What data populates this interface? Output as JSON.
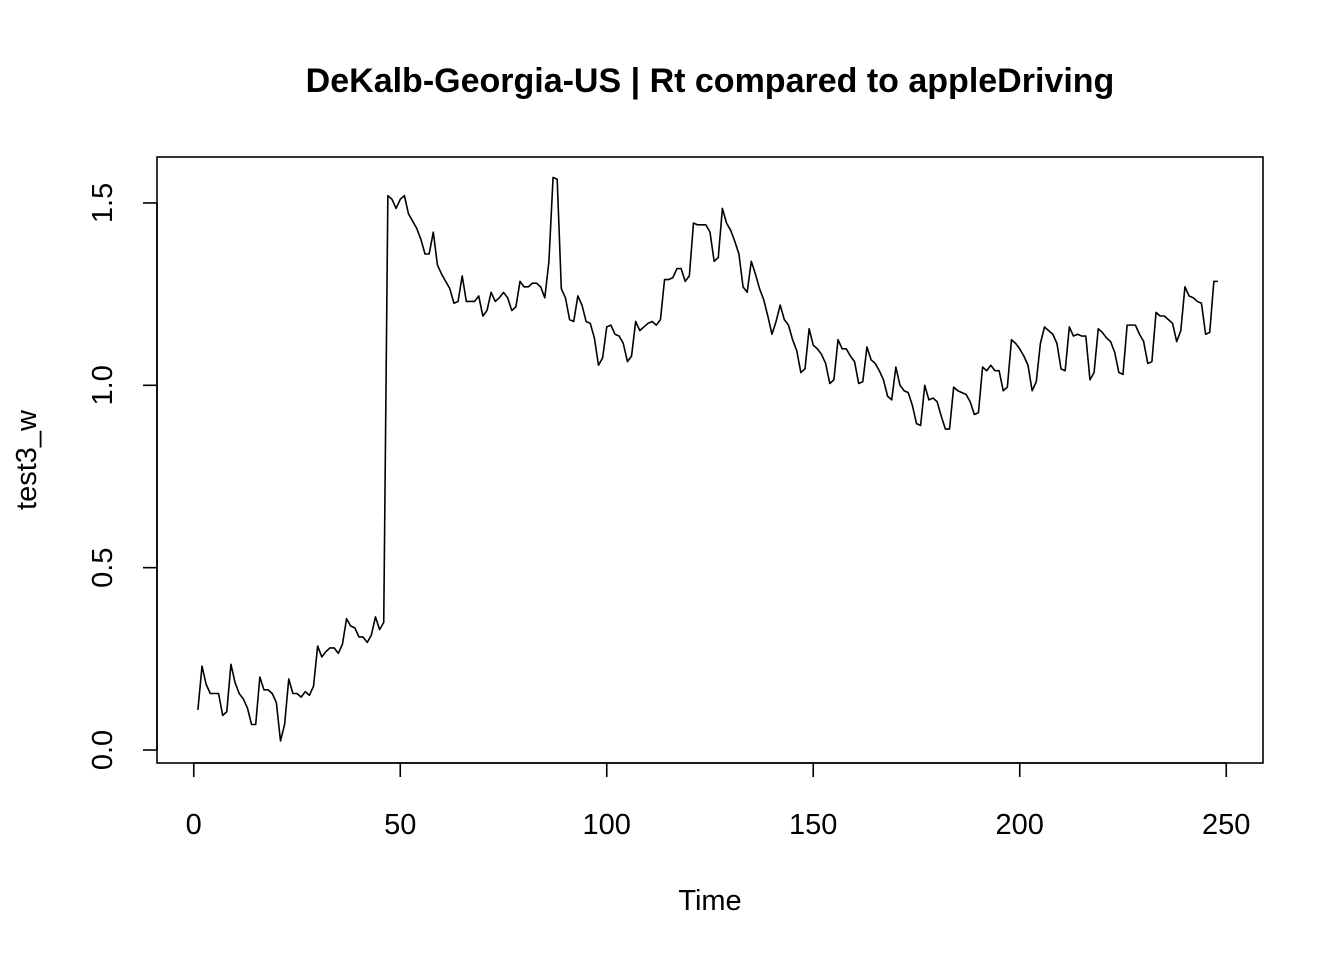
{
  "chart_data": {
    "type": "line",
    "title": "DeKalb-Georgia-US | Rt compared to appleDriving",
    "xlabel": "Time",
    "ylabel": "test3_w",
    "xlim": [
      -8.9,
      258.9
    ],
    "ylim": [
      -0.0356,
      1.626
    ],
    "x_ticks": [
      0,
      50,
      100,
      150,
      200,
      250
    ],
    "y_ticks": [
      0.0,
      0.5,
      1.0,
      1.5
    ],
    "x_tick_labels": [
      "0",
      "50",
      "100",
      "150",
      "200",
      "250"
    ],
    "y_tick_labels": [
      "0.0",
      "0.5",
      "1.0",
      "1.5"
    ],
    "grid": false,
    "series": [
      {
        "x": [
          1,
          2,
          3,
          4,
          5,
          6,
          7,
          8,
          9,
          10,
          11,
          12,
          13,
          14,
          15,
          16,
          17,
          18,
          19,
          20,
          21,
          22,
          23,
          24,
          25,
          26,
          27,
          28,
          29,
          30,
          31,
          32,
          33,
          34,
          35,
          36,
          37,
          38,
          39,
          40,
          41,
          42,
          43,
          44,
          45,
          46,
          47,
          48,
          49,
          50,
          51,
          52,
          53,
          54,
          55,
          56,
          57,
          58,
          59,
          60,
          61,
          62,
          63,
          64,
          65,
          66,
          67,
          68,
          69,
          70,
          71,
          72,
          73,
          74,
          75,
          76,
          77,
          78,
          79,
          80,
          81,
          82,
          83,
          84,
          85,
          86,
          87,
          88,
          89,
          90,
          91,
          92,
          93,
          94,
          95,
          96,
          97,
          98,
          99,
          100,
          101,
          102,
          103,
          104,
          105,
          106,
          107,
          108,
          109,
          110,
          111,
          112,
          113,
          114,
          115,
          116,
          117,
          118,
          119,
          120,
          121,
          122,
          123,
          124,
          125,
          126,
          127,
          128,
          129,
          130,
          131,
          132,
          133,
          134,
          135,
          136,
          137,
          138,
          139,
          140,
          141,
          142,
          143,
          144,
          145,
          146,
          147,
          148,
          149,
          150,
          151,
          152,
          153,
          154,
          155,
          156,
          157,
          158,
          159,
          160,
          161,
          162,
          163,
          164,
          165,
          166,
          167,
          168,
          169,
          170,
          171,
          172,
          173,
          174,
          175,
          176,
          177,
          178,
          179,
          180,
          181,
          182,
          183,
          184,
          185,
          186,
          187,
          188,
          189,
          190,
          191,
          192,
          193,
          194,
          195,
          196,
          197,
          198,
          199,
          200,
          201,
          202,
          203,
          204,
          205,
          206,
          207,
          208,
          209,
          210,
          211,
          212,
          213,
          214,
          215,
          216,
          217,
          218,
          219,
          220,
          221,
          222,
          223,
          224,
          225,
          226,
          227,
          228,
          229,
          230,
          231,
          232,
          233,
          234,
          235,
          236,
          237,
          238,
          239,
          240,
          241,
          242,
          243,
          244,
          245,
          246,
          247,
          248
        ],
        "values": [
          0.11,
          0.23,
          0.18,
          0.155,
          0.155,
          0.155,
          0.095,
          0.105,
          0.235,
          0.185,
          0.155,
          0.14,
          0.115,
          0.07,
          0.07,
          0.2,
          0.165,
          0.165,
          0.155,
          0.13,
          0.025,
          0.07,
          0.195,
          0.155,
          0.155,
          0.145,
          0.16,
          0.15,
          0.175,
          0.285,
          0.255,
          0.27,
          0.28,
          0.28,
          0.265,
          0.29,
          0.36,
          0.34,
          0.335,
          0.31,
          0.31,
          0.295,
          0.315,
          0.365,
          0.33,
          0.35,
          1.52,
          1.51,
          1.485,
          1.51,
          1.52,
          1.47,
          1.45,
          1.43,
          1.4,
          1.36,
          1.36,
          1.42,
          1.33,
          1.305,
          1.285,
          1.265,
          1.225,
          1.23,
          1.3,
          1.23,
          1.23,
          1.23,
          1.245,
          1.19,
          1.205,
          1.255,
          1.23,
          1.24,
          1.255,
          1.24,
          1.205,
          1.215,
          1.285,
          1.27,
          1.27,
          1.28,
          1.28,
          1.27,
          1.24,
          1.34,
          1.57,
          1.565,
          1.265,
          1.24,
          1.18,
          1.175,
          1.245,
          1.22,
          1.175,
          1.17,
          1.13,
          1.055,
          1.075,
          1.16,
          1.165,
          1.14,
          1.135,
          1.115,
          1.065,
          1.08,
          1.175,
          1.15,
          1.16,
          1.17,
          1.175,
          1.165,
          1.18,
          1.29,
          1.29,
          1.295,
          1.32,
          1.32,
          1.285,
          1.3,
          1.445,
          1.44,
          1.44,
          1.44,
          1.42,
          1.34,
          1.35,
          1.485,
          1.445,
          1.425,
          1.395,
          1.36,
          1.27,
          1.255,
          1.34,
          1.305,
          1.265,
          1.235,
          1.19,
          1.14,
          1.175,
          1.22,
          1.18,
          1.165,
          1.125,
          1.095,
          1.035,
          1.045,
          1.155,
          1.11,
          1.1,
          1.085,
          1.06,
          1.005,
          1.015,
          1.125,
          1.1,
          1.1,
          1.08,
          1.065,
          1.005,
          1.01,
          1.105,
          1.07,
          1.06,
          1.04,
          1.015,
          0.97,
          0.96,
          1.05,
          1.0,
          0.985,
          0.98,
          0.945,
          0.895,
          0.89,
          1.0,
          0.96,
          0.965,
          0.955,
          0.915,
          0.88,
          0.88,
          0.995,
          0.985,
          0.98,
          0.975,
          0.955,
          0.92,
          0.925,
          1.05,
          1.04,
          1.055,
          1.04,
          1.04,
          0.985,
          0.995,
          1.125,
          1.115,
          1.1,
          1.08,
          1.055,
          0.985,
          1.01,
          1.115,
          1.16,
          1.15,
          1.14,
          1.115,
          1.045,
          1.04,
          1.16,
          1.135,
          1.14,
          1.135,
          1.135,
          1.015,
          1.035,
          1.155,
          1.145,
          1.13,
          1.12,
          1.09,
          1.035,
          1.03,
          1.165,
          1.165,
          1.165,
          1.14,
          1.12,
          1.06,
          1.065,
          1.2,
          1.19,
          1.19,
          1.18,
          1.17,
          1.12,
          1.15,
          1.27,
          1.245,
          1.24,
          1.23,
          1.225,
          1.14,
          1.145,
          1.285,
          1.285
        ]
      }
    ]
  }
}
